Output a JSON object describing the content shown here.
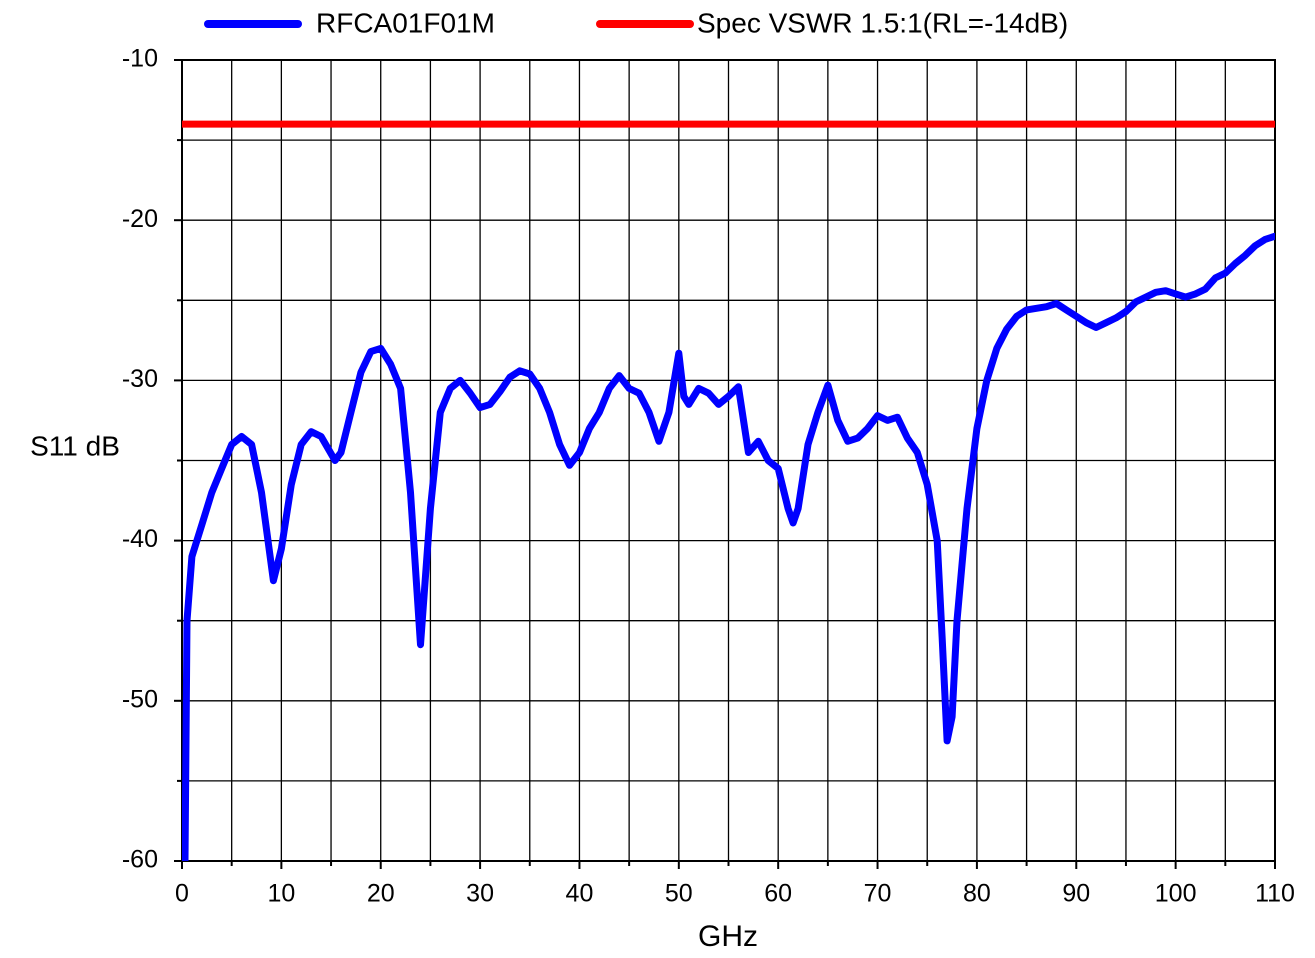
{
  "chart_data": {
    "type": "line",
    "x_label": "GHz",
    "y_label": "S11 dB",
    "xlim": [
      0,
      110
    ],
    "ylim": [
      -60,
      -10
    ],
    "xticks": [
      0,
      10,
      20,
      30,
      40,
      50,
      60,
      70,
      80,
      90,
      100,
      110
    ],
    "yticks": [
      -60,
      -50,
      -40,
      -30,
      -20,
      -10
    ],
    "xminorticks": [
      5,
      15,
      25,
      35,
      45,
      55,
      65,
      75,
      85,
      95,
      105
    ],
    "yminorticks": [
      -55,
      -45,
      -35,
      -25,
      -15
    ],
    "grid": true,
    "legend": "top",
    "series": [
      {
        "name": "RFCA01F01M",
        "color": "#0000ff",
        "x": [
          0.3,
          0.5,
          1,
          2,
          3,
          4,
          5,
          6,
          7,
          8,
          9.2,
          10,
          11,
          12,
          13,
          14,
          15.4,
          16,
          17,
          18,
          19,
          20,
          21,
          22,
          23,
          24,
          25,
          26,
          27,
          28,
          29,
          30,
          31,
          32,
          33,
          34,
          35,
          36,
          37,
          38,
          39,
          40,
          41,
          42,
          43,
          44,
          45,
          46,
          47,
          48,
          49,
          50,
          50.5,
          51,
          52,
          53,
          54,
          55,
          56,
          57,
          58,
          59,
          60,
          61,
          61.5,
          62,
          63,
          64,
          65,
          66,
          67,
          68,
          69,
          70,
          71,
          72,
          73,
          74,
          75,
          76,
          76.5,
          77,
          77.5,
          78,
          79,
          80,
          81,
          82,
          83,
          84,
          85,
          86,
          87,
          88,
          89,
          90,
          91,
          92,
          93,
          94,
          95,
          96,
          97,
          98,
          99,
          100,
          101,
          102,
          103,
          104,
          105,
          106,
          107,
          108,
          109,
          110
        ],
        "values": [
          -60,
          -45,
          -41,
          -39,
          -37,
          -35.5,
          -34,
          -33.5,
          -34,
          -37,
          -42.5,
          -40.5,
          -36.5,
          -34,
          -33.2,
          -33.5,
          -35,
          -34.5,
          -32,
          -29.5,
          -28.2,
          -28,
          -29,
          -30.5,
          -37,
          -46.5,
          -38,
          -32,
          -30.5,
          -30,
          -30.8,
          -31.7,
          -31.5,
          -30.7,
          -29.8,
          -29.4,
          -29.6,
          -30.5,
          -32,
          -34,
          -35.3,
          -34.5,
          -33,
          -32,
          -30.5,
          -29.7,
          -30.5,
          -30.8,
          -32,
          -33.8,
          -32,
          -28.3,
          -31,
          -31.5,
          -30.5,
          -30.8,
          -31.5,
          -31,
          -30.4,
          -34.5,
          -33.8,
          -35,
          -35.5,
          -38,
          -38.9,
          -38,
          -34,
          -32,
          -30.3,
          -32.5,
          -33.8,
          -33.6,
          -33,
          -32.2,
          -32.5,
          -32.3,
          -33.6,
          -34.5,
          -36.5,
          -40,
          -46,
          -52.5,
          -51,
          -45,
          -38,
          -33,
          -30,
          -28,
          -26.8,
          -26,
          -25.6,
          -25.5,
          -25.4,
          -25.2,
          -25.6,
          -26,
          -26.4,
          -26.7,
          -26.4,
          -26.1,
          -25.7,
          -25.1,
          -24.8,
          -24.5,
          -24.4,
          -24.6,
          -24.8,
          -24.6,
          -24.3,
          -23.6,
          -23.3,
          -22.7,
          -22.2,
          -21.6,
          -21.2,
          -21
        ]
      },
      {
        "name": "Spec VSWR 1.5:1(RL=-14dB)",
        "color": "#ff0000",
        "x": [
          0,
          110
        ],
        "values": [
          -14,
          -14
        ]
      }
    ]
  }
}
